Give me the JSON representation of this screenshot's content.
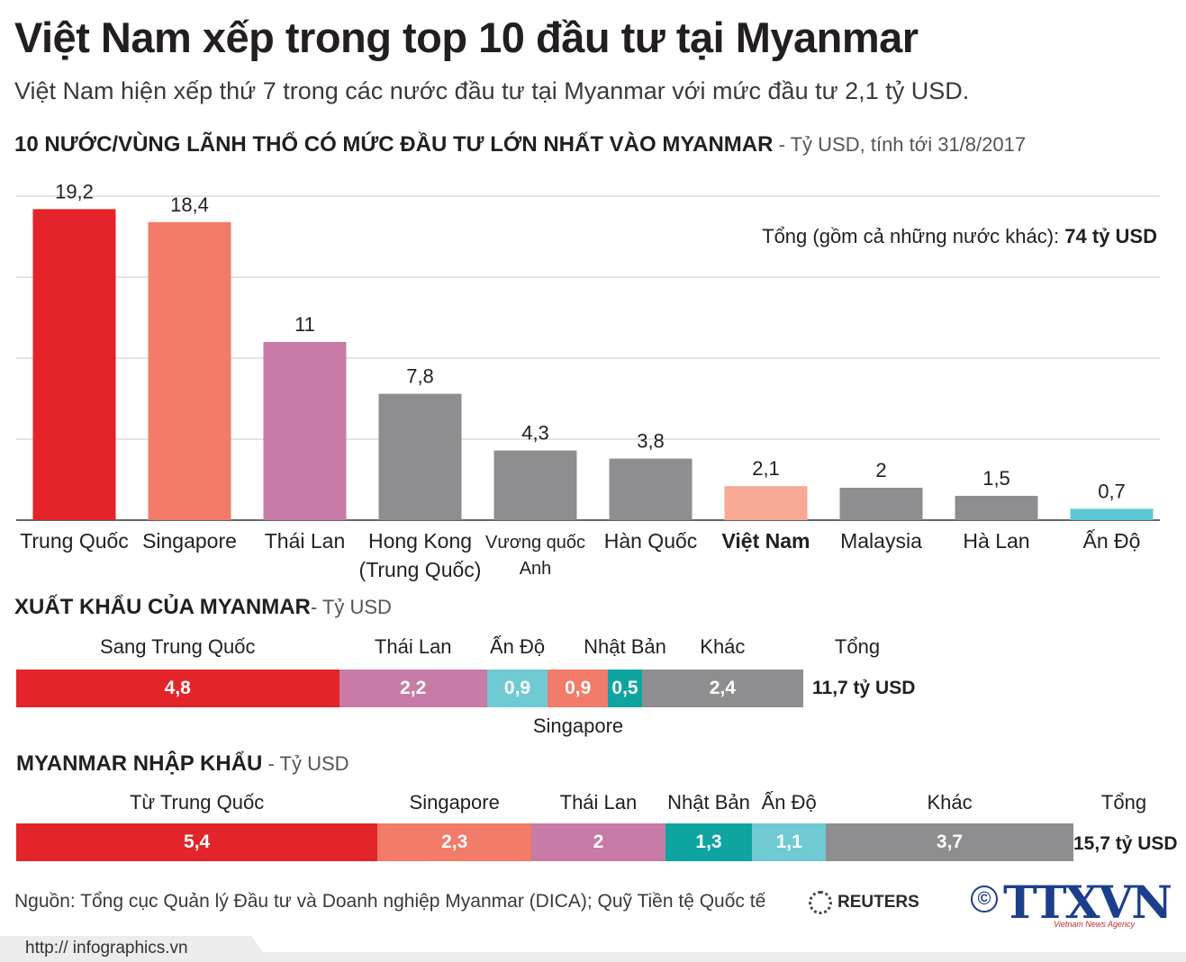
{
  "title": "Việt Nam xếp trong top 10 đầu tư tại Myanmar",
  "subtitle": "Việt Nam hiện xếp thứ 7 trong các nước đầu tư tại Myanmar với mức đầu tư 2,1 tỷ USD.",
  "investment": {
    "heading": "10 NƯỚC/VÙNG LÃNH THỔ CÓ MỨC ĐẦU TƯ LỚN NHẤT VÀO MYANMAR",
    "unit": " - Tỷ USD, tính tới 31/8/2017",
    "total_label": "Tổng (gồm cả những nước khác): ",
    "total_value": "74 tỷ USD"
  },
  "exports": {
    "heading": "XUẤT KHẨU CỦA MYANMAR",
    "unit": "- Tỷ USD",
    "total_label": "Tổng",
    "total_value": "11,7 tỷ USD",
    "below_label": "Singapore"
  },
  "imports": {
    "heading": "MYANMAR NHẬP KHẨU",
    "unit": " - Tỷ USD",
    "total_label": "Tổng",
    "total_value": "15,7 tỷ USD"
  },
  "source": "Nguồn: Tổng cục Quản lý Đầu tư và Doanh nghiệp Myanmar (DICA); Quỹ Tiền tệ Quốc tế",
  "reuters": "REUTERS",
  "copyright_symbol": "©",
  "agency_logo": "TTXVN",
  "agency_sub": "Vietnam News Agency",
  "footer_url": "http:// infographics.vn",
  "chart_data": [
    {
      "type": "bar",
      "title": "10 NƯỚC/VÙNG LÃNH THỔ CÓ MỨC ĐẦU TƯ LỚN NHẤT VÀO MYANMAR",
      "categories": [
        "Trung Quốc",
        "Singapore",
        "Thái Lan",
        "Hong Kong (Trung Quốc)",
        "Vương quốc Anh",
        "Hàn Quốc",
        "Việt Nam",
        "Malaysia",
        "Hà Lan",
        "Ấn Độ"
      ],
      "values": [
        19.2,
        18.4,
        11,
        7.8,
        4.3,
        3.8,
        2.1,
        2,
        1.5,
        0.7
      ],
      "value_labels": [
        "19,2",
        "18,4",
        "11",
        "7,8",
        "4,3",
        "3,8",
        "2,1",
        "2",
        "1,5",
        "0,7"
      ],
      "colors": [
        "#e3242b",
        "#f27b69",
        "#c77ba6",
        "#8e8e90",
        "#8e8e90",
        "#8e8e90",
        "#f7a996",
        "#8e8e90",
        "#8e8e90",
        "#5ec8d2"
      ],
      "highlight": "Việt Nam",
      "ylim": [
        0,
        20
      ],
      "grid": true
    },
    {
      "type": "bar",
      "stacked": true,
      "title": "XUẤT KHẨU CỦA MYANMAR",
      "categories": [
        "Sang Trung Quốc",
        "Thái Lan",
        "Ấn Độ",
        "Singapore",
        "Nhật Bản",
        "Khác"
      ],
      "values": [
        4.8,
        2.2,
        0.9,
        0.9,
        0.5,
        2.4
      ],
      "value_labels": [
        "4,8",
        "2,2",
        "0,9",
        "0,9",
        "0,5",
        "2,4"
      ],
      "colors": [
        "#e3242b",
        "#c77ba6",
        "#6fcad3",
        "#f27b69",
        "#0ea5a0",
        "#8e8e90"
      ],
      "total": "11,7 tỷ USD"
    },
    {
      "type": "bar",
      "stacked": true,
      "title": "MYANMAR NHẬP KHẨU",
      "categories": [
        "Từ Trung Quốc",
        "Singapore",
        "Thái Lan",
        "Nhật Bản",
        "Ấn Độ",
        "Khác"
      ],
      "values": [
        5.4,
        2.3,
        2,
        1.3,
        1.1,
        3.7
      ],
      "value_labels": [
        "5,4",
        "2,3",
        "2",
        "1,3",
        "1,1",
        "3,7"
      ],
      "colors": [
        "#e3242b",
        "#f27b69",
        "#c77ba6",
        "#0ea5a0",
        "#6fcad3",
        "#8e8e90"
      ],
      "total": "15,7 tỷ USD"
    }
  ]
}
